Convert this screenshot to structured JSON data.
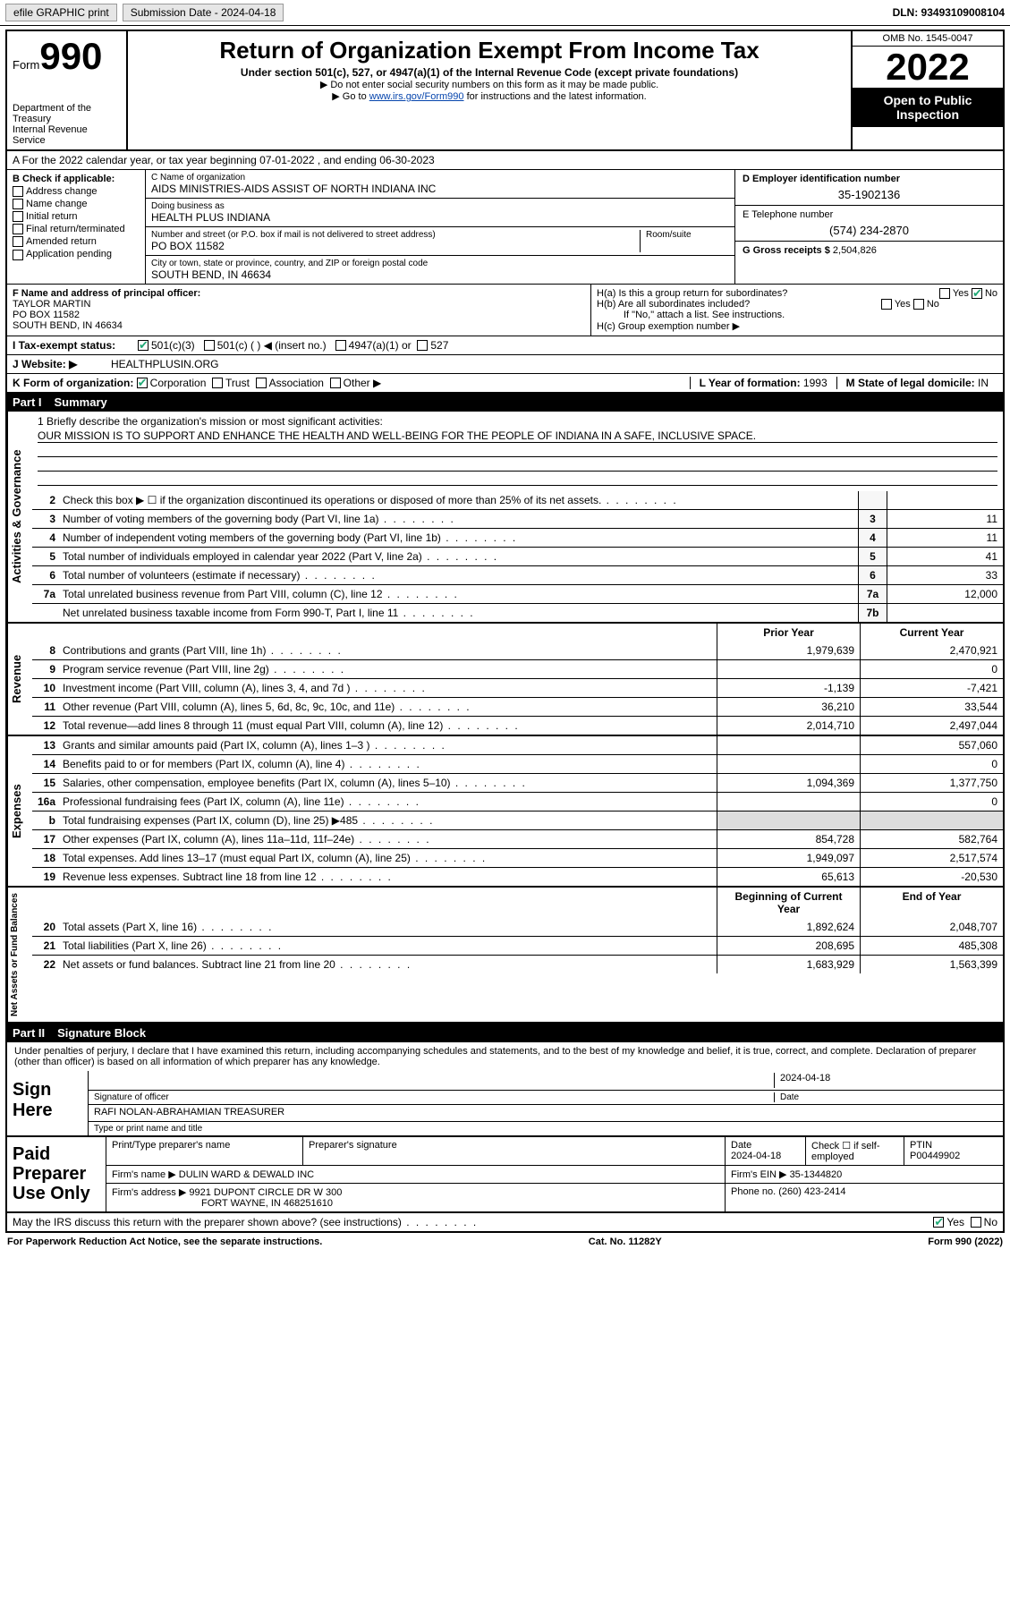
{
  "topbar": {
    "efile_label": "efile GRAPHIC print",
    "submission_label": "Submission Date - 2024-04-18",
    "dln_label": "DLN: 93493109008104"
  },
  "header": {
    "form_label": "Form",
    "form_number": "990",
    "dept": "Department of the Treasury",
    "irs": "Internal Revenue Service",
    "title": "Return of Organization Exempt From Income Tax",
    "subtitle": "Under section 501(c), 527, or 4947(a)(1) of the Internal Revenue Code (except private foundations)",
    "note1": "▶ Do not enter social security numbers on this form as it may be made public.",
    "note2_prefix": "▶ Go to ",
    "note2_link": "www.irs.gov/Form990",
    "note2_suffix": " for instructions and the latest information.",
    "omb": "OMB No. 1545-0047",
    "year": "2022",
    "inspect": "Open to Public Inspection"
  },
  "line_a": "A For the 2022 calendar year, or tax year beginning 07-01-2022    , and ending 06-30-2023",
  "box_b": {
    "title": "B Check if applicable:",
    "items": [
      "Address change",
      "Name change",
      "Initial return",
      "Final return/terminated",
      "Amended return",
      "Application pending"
    ]
  },
  "box_c": {
    "name_lbl": "C Name of organization",
    "name": "AIDS MINISTRIES-AIDS ASSIST OF NORTH INDIANA INC",
    "dba_lbl": "Doing business as",
    "dba": "HEALTH PLUS INDIANA",
    "street_lbl": "Number and street (or P.O. box if mail is not delivered to street address)",
    "room_lbl": "Room/suite",
    "street": "PO BOX 11582",
    "city_lbl": "City or town, state or province, country, and ZIP or foreign postal code",
    "city": "SOUTH BEND, IN  46634"
  },
  "box_d": {
    "lbl": "D Employer identification number",
    "val": "35-1902136"
  },
  "box_e": {
    "lbl": "E Telephone number",
    "val": "(574) 234-2870"
  },
  "box_g": {
    "lbl": "G Gross receipts $",
    "val": "2,504,826"
  },
  "box_f": {
    "lbl": "F Name and address of principal officer:",
    "name": "TAYLOR MARTIN",
    "addr1": "PO BOX 11582",
    "addr2": "SOUTH BEND, IN  46634"
  },
  "box_h": {
    "a": "H(a)  Is this a group return for subordinates?",
    "a_yes": "Yes",
    "a_no": "No",
    "b": "H(b)  Are all subordinates included?",
    "b_note": "If \"No,\" attach a list. See instructions.",
    "c": "H(c)  Group exemption number ▶"
  },
  "line_i": {
    "lbl": "I   Tax-exempt status:",
    "opts": [
      "501(c)(3)",
      "501(c) (   ) ◀ (insert no.)",
      "4947(a)(1) or",
      "527"
    ]
  },
  "line_j": {
    "lbl": "J   Website: ▶",
    "val": "HEALTHPLUSIN.ORG"
  },
  "line_k": {
    "lbl": "K Form of organization:",
    "opts": [
      "Corporation",
      "Trust",
      "Association",
      "Other ▶"
    ]
  },
  "line_l": {
    "lbl": "L Year of formation:",
    "val": "1993"
  },
  "line_m": {
    "lbl": "M State of legal domicile:",
    "val": "IN"
  },
  "part1": {
    "num": "Part I",
    "title": "Summary"
  },
  "mission": {
    "q": "1   Briefly describe the organization's mission or most significant activities:",
    "text": "OUR MISSION IS TO SUPPORT AND ENHANCE THE HEALTH AND WELL-BEING FOR THE PEOPLE OF INDIANA IN A SAFE, INCLUSIVE SPACE."
  },
  "gov_rows": [
    {
      "n": "2",
      "d": "Check this box ▶ ☐  if the organization discontinued its operations or disposed of more than 25% of its net assets.",
      "box": "",
      "v": ""
    },
    {
      "n": "3",
      "d": "Number of voting members of the governing body (Part VI, line 1a)",
      "box": "3",
      "v": "11"
    },
    {
      "n": "4",
      "d": "Number of independent voting members of the governing body (Part VI, line 1b)",
      "box": "4",
      "v": "11"
    },
    {
      "n": "5",
      "d": "Total number of individuals employed in calendar year 2022 (Part V, line 2a)",
      "box": "5",
      "v": "41"
    },
    {
      "n": "6",
      "d": "Total number of volunteers (estimate if necessary)",
      "box": "6",
      "v": "33"
    },
    {
      "n": "7a",
      "d": "Total unrelated business revenue from Part VIII, column (C), line 12",
      "box": "7a",
      "v": "12,000"
    },
    {
      "n": "",
      "d": "Net unrelated business taxable income from Form 990-T, Part I, line 11",
      "box": "7b",
      "v": ""
    }
  ],
  "rev_hdr": {
    "py": "Prior Year",
    "cy": "Current Year"
  },
  "rev_rows": [
    {
      "n": "8",
      "d": "Contributions and grants (Part VIII, line 1h)",
      "py": "1,979,639",
      "cy": "2,470,921"
    },
    {
      "n": "9",
      "d": "Program service revenue (Part VIII, line 2g)",
      "py": "",
      "cy": "0"
    },
    {
      "n": "10",
      "d": "Investment income (Part VIII, column (A), lines 3, 4, and 7d )",
      "py": "-1,139",
      "cy": "-7,421"
    },
    {
      "n": "11",
      "d": "Other revenue (Part VIII, column (A), lines 5, 6d, 8c, 9c, 10c, and 11e)",
      "py": "36,210",
      "cy": "33,544"
    },
    {
      "n": "12",
      "d": "Total revenue—add lines 8 through 11 (must equal Part VIII, column (A), line 12)",
      "py": "2,014,710",
      "cy": "2,497,044"
    }
  ],
  "exp_rows": [
    {
      "n": "13",
      "d": "Grants and similar amounts paid (Part IX, column (A), lines 1–3 )",
      "py": "",
      "cy": "557,060"
    },
    {
      "n": "14",
      "d": "Benefits paid to or for members (Part IX, column (A), line 4)",
      "py": "",
      "cy": "0"
    },
    {
      "n": "15",
      "d": "Salaries, other compensation, employee benefits (Part IX, column (A), lines 5–10)",
      "py": "1,094,369",
      "cy": "1,377,750"
    },
    {
      "n": "16a",
      "d": "Professional fundraising fees (Part IX, column (A), line 11e)",
      "py": "",
      "cy": "0"
    },
    {
      "n": "b",
      "d": "Total fundraising expenses (Part IX, column (D), line 25) ▶485",
      "py": "—",
      "cy": "—"
    },
    {
      "n": "17",
      "d": "Other expenses (Part IX, column (A), lines 11a–11d, 11f–24e)",
      "py": "854,728",
      "cy": "582,764"
    },
    {
      "n": "18",
      "d": "Total expenses. Add lines 13–17 (must equal Part IX, column (A), line 25)",
      "py": "1,949,097",
      "cy": "2,517,574"
    },
    {
      "n": "19",
      "d": "Revenue less expenses. Subtract line 18 from line 12",
      "py": "65,613",
      "cy": "-20,530"
    }
  ],
  "na_hdr": {
    "py": "Beginning of Current Year",
    "cy": "End of Year"
  },
  "na_rows": [
    {
      "n": "20",
      "d": "Total assets (Part X, line 16)",
      "py": "1,892,624",
      "cy": "2,048,707"
    },
    {
      "n": "21",
      "d": "Total liabilities (Part X, line 26)",
      "py": "208,695",
      "cy": "485,308"
    },
    {
      "n": "22",
      "d": "Net assets or fund balances. Subtract line 21 from line 20",
      "py": "1,683,929",
      "cy": "1,563,399"
    }
  ],
  "part2": {
    "num": "Part II",
    "title": "Signature Block"
  },
  "penalty": "Under penalties of perjury, I declare that I have examined this return, including accompanying schedules and statements, and to the best of my knowledge and belief, it is true, correct, and complete. Declaration of preparer (other than officer) is based on all information of which preparer has any knowledge.",
  "sign": {
    "label": "Sign Here",
    "sig_lbl": "Signature of officer",
    "date_lbl": "Date",
    "date": "2024-04-18",
    "name": "RAFI NOLAN-ABRAHAMIAN  TREASURER",
    "name_lbl": "Type or print name and title"
  },
  "preparer": {
    "label": "Paid Preparer Use Only",
    "h1": "Print/Type preparer's name",
    "h2": "Preparer's signature",
    "h3": "Date",
    "h4": "Check ☐ if self-employed",
    "h5": "PTIN",
    "date": "2024-04-18",
    "ptin": "P00449902",
    "firm_lbl": "Firm's name    ▶",
    "firm": "DULIN WARD & DEWALD INC",
    "ein_lbl": "Firm's EIN ▶",
    "ein": "35-1344820",
    "addr_lbl": "Firm's address ▶",
    "addr1": "9921 DUPONT CIRCLE DR W 300",
    "addr2": "FORT WAYNE, IN  468251610",
    "phone_lbl": "Phone no.",
    "phone": "(260) 423-2414"
  },
  "discuss": {
    "q": "May the IRS discuss this return with the preparer shown above? (see instructions)",
    "yes": "Yes",
    "no": "No"
  },
  "footer": {
    "left": "For Paperwork Reduction Act Notice, see the separate instructions.",
    "mid": "Cat. No. 11282Y",
    "right": "Form 990 (2022)"
  },
  "sidelabels": {
    "gov": "Activities & Governance",
    "rev": "Revenue",
    "exp": "Expenses",
    "na": "Net Assets or Fund Balances"
  }
}
